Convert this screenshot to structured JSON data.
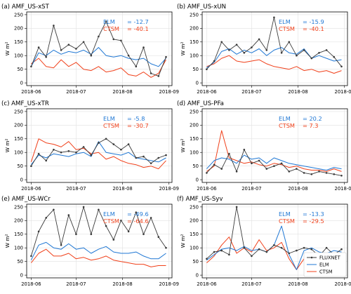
{
  "colors": {
    "fluxnet": "#3a3a3a",
    "elm": "#1f77d4",
    "ctsm": "#f0401a"
  },
  "legend": {
    "position": "bottom-right of panel (f)",
    "fluxnet": "FLUXNET",
    "elm": "ELM",
    "ctsm": "CTSM"
  },
  "chart_data": [
    {
      "type": "line",
      "title": "(a) AMF_US-xST",
      "ylabel": "W m²",
      "ylim": [
        -10,
        260
      ],
      "yticks": [
        "0",
        "50",
        "100",
        "150",
        "200",
        "250"
      ],
      "xticks": [
        "2018-06",
        "2018-07",
        "2018-08",
        "2018-09"
      ],
      "grid": true,
      "annotations": {
        "elm_label": "ELM",
        "elm_value": "= -12.7",
        "ctsm_label": "CTSM",
        "ctsm_value": "= -40.1"
      },
      "x": [
        "2018-06-01",
        "2018-06-06",
        "2018-06-11",
        "2018-06-16",
        "2018-06-21",
        "2018-06-26",
        "2018-07-01",
        "2018-07-06",
        "2018-07-11",
        "2018-07-16",
        "2018-07-21",
        "2018-07-26",
        "2018-07-31",
        "2018-08-05",
        "2018-08-10",
        "2018-08-15",
        "2018-08-20",
        "2018-08-25",
        "2018-08-30"
      ],
      "series": [
        {
          "name": "FLUXNET",
          "values": [
            60,
            130,
            95,
            210,
            120,
            140,
            125,
            150,
            100,
            170,
            225,
            160,
            155,
            100,
            60,
            130,
            35,
            25,
            95
          ]
        },
        {
          "name": "ELM",
          "values": [
            60,
            110,
            100,
            120,
            105,
            115,
            110,
            120,
            105,
            130,
            100,
            95,
            100,
            90,
            85,
            90,
            70,
            60,
            90
          ]
        },
        {
          "name": "CTSM",
          "values": [
            70,
            90,
            60,
            55,
            85,
            60,
            75,
            50,
            45,
            60,
            40,
            45,
            55,
            30,
            25,
            40,
            20,
            35,
            85
          ]
        }
      ]
    },
    {
      "type": "line",
      "title": "(b) AMF_US-xUN",
      "ylabel": "W m²",
      "ylim": [
        -10,
        260
      ],
      "yticks": [
        "0",
        "50",
        "100",
        "150",
        "200",
        "250"
      ],
      "xticks": [
        "2018-06",
        "2018-07",
        "2018-08",
        "2018-09"
      ],
      "grid": true,
      "annotations": {
        "elm_label": "ELM",
        "elm_value": "= -15.9",
        "ctsm_label": "CTSM",
        "ctsm_value": "= -40.1"
      },
      "x": [
        "2018-06-01",
        "2018-06-06",
        "2018-06-11",
        "2018-06-16",
        "2018-06-21",
        "2018-06-26",
        "2018-07-01",
        "2018-07-06",
        "2018-07-11",
        "2018-07-16",
        "2018-07-21",
        "2018-07-26",
        "2018-07-31",
        "2018-08-05",
        "2018-08-10",
        "2018-08-15",
        "2018-08-20",
        "2018-08-25",
        "2018-08-30"
      ],
      "series": [
        {
          "name": "FLUXNET",
          "values": [
            50,
            80,
            150,
            120,
            140,
            110,
            130,
            160,
            120,
            240,
            110,
            150,
            100,
            120,
            90,
            110,
            120,
            95,
            60
          ]
        },
        {
          "name": "ELM",
          "values": [
            55,
            75,
            115,
            125,
            105,
            120,
            110,
            125,
            100,
            120,
            130,
            110,
            105,
            125,
            90,
            100,
            90,
            80,
            85
          ]
        },
        {
          "name": "CTSM",
          "values": [
            60,
            70,
            90,
            100,
            80,
            75,
            80,
            85,
            70,
            60,
            55,
            50,
            60,
            45,
            50,
            40,
            45,
            35,
            45
          ]
        }
      ]
    },
    {
      "type": "line",
      "title": "(c) AMF_US-xTR",
      "ylabel": "W m²",
      "ylim": [
        -10,
        260
      ],
      "yticks": [
        "0",
        "50",
        "100",
        "150",
        "200",
        "250"
      ],
      "xticks": [
        "2018-06",
        "2018-07",
        "2018-08",
        "2018-09"
      ],
      "grid": true,
      "annotations": {
        "elm_label": "ELM",
        "elm_value": "= -5.8",
        "ctsm_label": "CTSM",
        "ctsm_value": "= -30.7"
      },
      "x": [
        "2018-06-01",
        "2018-06-06",
        "2018-06-11",
        "2018-06-16",
        "2018-06-21",
        "2018-06-26",
        "2018-07-01",
        "2018-07-06",
        "2018-07-11",
        "2018-07-16",
        "2018-07-21",
        "2018-07-26",
        "2018-07-31",
        "2018-08-05",
        "2018-08-10",
        "2018-08-15",
        "2018-08-20",
        "2018-08-25",
        "2018-08-30"
      ],
      "series": [
        {
          "name": "FLUXNET",
          "values": [
            50,
            95,
            70,
            110,
            100,
            105,
            100,
            120,
            90,
            135,
            150,
            130,
            110,
            130,
            80,
            85,
            60,
            80,
            90
          ]
        },
        {
          "name": "ELM",
          "values": [
            55,
            90,
            80,
            95,
            90,
            85,
            95,
            100,
            85,
            140,
            100,
            95,
            90,
            100,
            80,
            75,
            70,
            65,
            80
          ]
        },
        {
          "name": "CTSM",
          "values": [
            65,
            150,
            135,
            130,
            120,
            140,
            110,
            115,
            95,
            100,
            75,
            85,
            70,
            60,
            55,
            45,
            50,
            40,
            70
          ]
        }
      ]
    },
    {
      "type": "line",
      "title": "(d) AMF_US-PFa",
      "ylabel": "W m²",
      "ylim": [
        -10,
        260
      ],
      "yticks": [
        "0",
        "50",
        "100",
        "150",
        "200",
        "250"
      ],
      "xticks": [
        "2018-06",
        "2018-07",
        "2018-08",
        "2018-09"
      ],
      "grid": true,
      "annotations": {
        "elm_label": "ELM",
        "elm_value": "= 20.2",
        "ctsm_label": "CTSM",
        "ctsm_value": "= 7.3"
      },
      "x": [
        "2018-06-01",
        "2018-06-06",
        "2018-06-11",
        "2018-06-16",
        "2018-06-21",
        "2018-06-26",
        "2018-07-01",
        "2018-07-06",
        "2018-07-11",
        "2018-07-16",
        "2018-07-21",
        "2018-07-26",
        "2018-07-31",
        "2018-08-05",
        "2018-08-10",
        "2018-08-15",
        "2018-08-20",
        "2018-08-25",
        "2018-08-30"
      ],
      "series": [
        {
          "name": "FLUXNET",
          "values": [
            25,
            55,
            40,
            95,
            30,
            110,
            60,
            70,
            40,
            50,
            60,
            30,
            40,
            25,
            20,
            30,
            25,
            20,
            15
          ]
        },
        {
          "name": "ELM",
          "values": [
            40,
            70,
            80,
            75,
            60,
            90,
            75,
            80,
            60,
            80,
            70,
            60,
            55,
            50,
            45,
            40,
            35,
            45,
            40
          ]
        },
        {
          "name": "CTSM",
          "values": [
            30,
            50,
            180,
            80,
            70,
            60,
            65,
            55,
            50,
            60,
            55,
            45,
            50,
            40,
            35,
            35,
            30,
            40,
            30
          ]
        }
      ]
    },
    {
      "type": "line",
      "title": "(e) AMF_US-WCr",
      "ylabel": "W m²",
      "ylim": [
        -10,
        260
      ],
      "yticks": [
        "0",
        "50",
        "100",
        "150",
        "200",
        "250"
      ],
      "xticks": [
        "2018-06",
        "2018-07",
        "2018-08",
        "2018-09"
      ],
      "grid": true,
      "annotations": {
        "elm_label": "ELM",
        "elm_value": "= -49.6",
        "ctsm_label": "CTSM",
        "ctsm_value": "= -64.6"
      },
      "x": [
        "2018-06-01",
        "2018-06-06",
        "2018-06-11",
        "2018-06-16",
        "2018-06-21",
        "2018-06-26",
        "2018-07-01",
        "2018-07-06",
        "2018-07-11",
        "2018-07-16",
        "2018-07-21",
        "2018-07-26",
        "2018-07-31",
        "2018-08-05",
        "2018-08-10",
        "2018-08-15",
        "2018-08-20",
        "2018-08-25",
        "2018-08-30"
      ],
      "series": [
        {
          "name": "FLUXNET",
          "values": [
            70,
            160,
            210,
            240,
            110,
            220,
            150,
            250,
            150,
            240,
            180,
            130,
            200,
            160,
            230,
            150,
            210,
            140,
            100
          ]
        },
        {
          "name": "ELM",
          "values": [
            55,
            110,
            120,
            100,
            95,
            115,
            95,
            100,
            80,
            95,
            105,
            85,
            80,
            80,
            85,
            70,
            60,
            60,
            80
          ]
        },
        {
          "name": "CTSM",
          "values": [
            45,
            80,
            95,
            70,
            70,
            80,
            60,
            65,
            55,
            60,
            70,
            55,
            50,
            45,
            40,
            40,
            30,
            35,
            35
          ]
        }
      ]
    },
    {
      "type": "line",
      "title": "(f) AMF_US-Syv",
      "ylabel": "W m²",
      "ylim": [
        -10,
        260
      ],
      "yticks": [
        "0",
        "50",
        "100",
        "150",
        "200",
        "250"
      ],
      "xticks": [
        "2018-06",
        "2018-07",
        "2018-08",
        "2018-09"
      ],
      "grid": true,
      "annotations": {
        "elm_label": "ELM",
        "elm_value": "= -13.3",
        "ctsm_label": "CTSM",
        "ctsm_value": "= -29.5"
      },
      "x": [
        "2018-06-01",
        "2018-06-06",
        "2018-06-11",
        "2018-06-16",
        "2018-06-21",
        "2018-06-26",
        "2018-07-01",
        "2018-07-06",
        "2018-07-11",
        "2018-07-16",
        "2018-07-21",
        "2018-07-26",
        "2018-07-31",
        "2018-08-05",
        "2018-08-10",
        "2018-08-15",
        "2018-08-20",
        "2018-08-25",
        "2018-08-30"
      ],
      "series": [
        {
          "name": "FLUXNET",
          "values": [
            60,
            85,
            90,
            75,
            250,
            100,
            70,
            95,
            85,
            110,
            100,
            80,
            90,
            100,
            95,
            70,
            100,
            75,
            95
          ]
        },
        {
          "name": "ELM",
          "values": [
            55,
            75,
            95,
            100,
            90,
            105,
            90,
            95,
            85,
            110,
            180,
            75,
            20,
            90,
            100,
            85,
            80,
            90,
            85
          ]
        },
        {
          "name": "CTSM",
          "values": [
            45,
            70,
            110,
            140,
            80,
            100,
            85,
            130,
            90,
            100,
            120,
            60,
            20,
            60,
            70,
            55,
            50,
            45,
            55
          ]
        }
      ]
    }
  ]
}
